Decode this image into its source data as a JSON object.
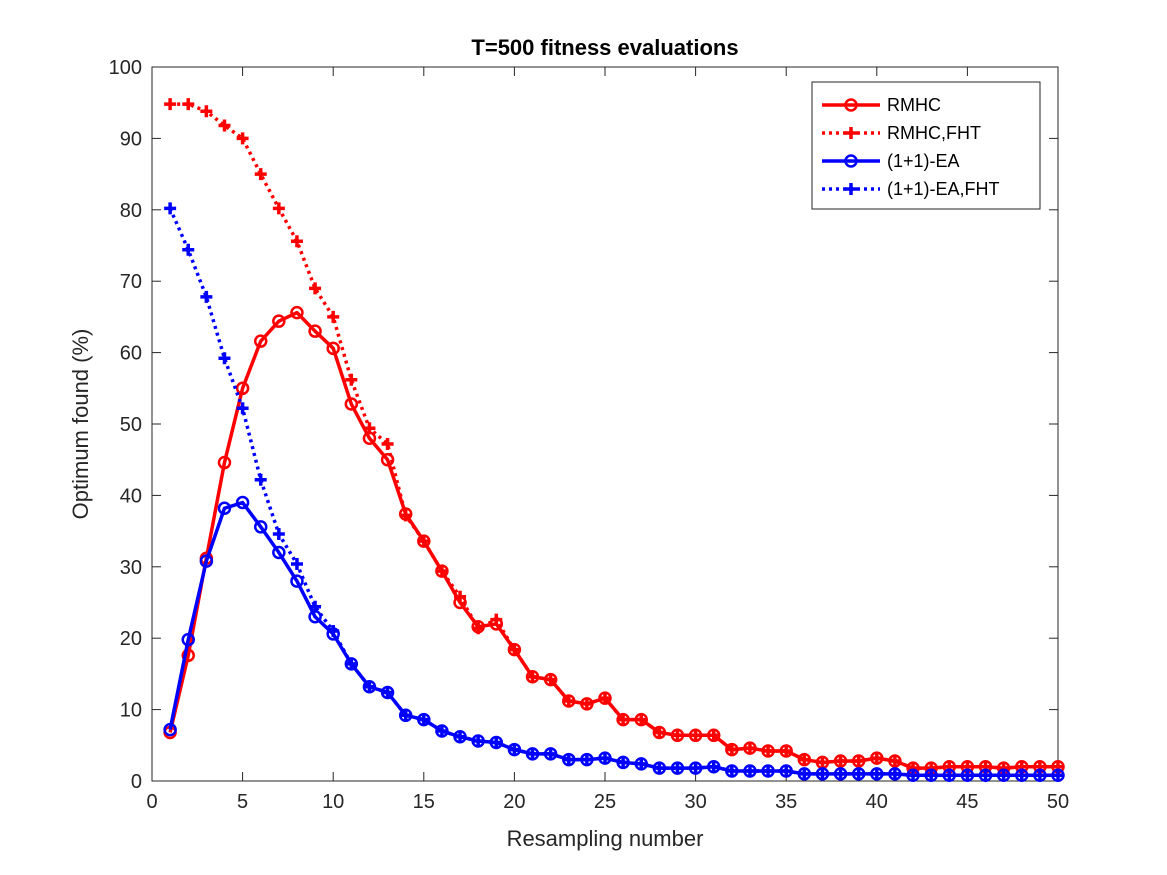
{
  "chart_data": {
    "type": "line",
    "title": "T=500 fitness evaluations",
    "xlabel": "Resampling number",
    "ylabel": "Optimum found (%)",
    "xlim": [
      0,
      50
    ],
    "ylim": [
      0,
      100
    ],
    "xticks": [
      0,
      5,
      10,
      15,
      20,
      25,
      30,
      35,
      40,
      45,
      50
    ],
    "yticks": [
      0,
      10,
      20,
      30,
      40,
      50,
      60,
      70,
      80,
      90,
      100
    ],
    "grid": false,
    "legend_position": "top-right",
    "x": [
      1,
      2,
      3,
      4,
      5,
      6,
      7,
      8,
      9,
      10,
      11,
      12,
      13,
      14,
      15,
      16,
      17,
      18,
      19,
      20,
      21,
      22,
      23,
      24,
      25,
      26,
      27,
      28,
      29,
      30,
      31,
      32,
      33,
      34,
      35,
      36,
      37,
      38,
      39,
      40,
      41,
      42,
      43,
      44,
      45,
      46,
      47,
      48,
      49,
      50
    ],
    "series": [
      {
        "name": "RMHC",
        "color": "#ff0000",
        "line_style": "solid",
        "marker": "circle",
        "values": [
          6.8,
          17.6,
          31.2,
          44.6,
          55.0,
          61.6,
          64.4,
          65.6,
          63.0,
          60.6,
          52.8,
          48.0,
          45.0,
          37.4,
          33.6,
          29.4,
          25.0,
          21.6,
          22.0,
          18.4,
          14.6,
          14.2,
          11.2,
          10.8,
          11.6,
          8.6,
          8.6,
          6.8,
          6.4,
          6.4,
          6.4,
          4.4,
          4.6,
          4.2,
          4.2,
          3.0,
          2.6,
          2.8,
          2.8,
          3.2,
          2.8,
          1.8,
          1.8,
          2.0,
          2.0,
          2.0,
          1.8,
          2.0,
          2.0,
          2.0
        ]
      },
      {
        "name": "RMHC,FHT",
        "color": "#ff0000",
        "line_style": "dotted",
        "marker": "plus",
        "values": [
          94.8,
          94.8,
          93.8,
          91.8,
          90.0,
          85.0,
          80.2,
          75.6,
          69.0,
          65.0,
          56.2,
          49.4,
          47.2,
          37.2,
          33.6,
          29.4,
          25.8,
          21.4,
          22.6,
          18.4,
          14.6,
          14.2,
          11.2,
          10.8,
          11.6,
          8.6,
          8.6,
          6.8,
          6.4,
          6.4,
          6.4,
          4.4,
          4.6,
          4.2,
          4.2,
          3.0,
          2.6,
          2.8,
          2.8,
          3.2,
          2.8,
          1.8,
          1.8,
          2.0,
          2.0,
          2.0,
          1.8,
          2.0,
          2.0,
          2.0
        ]
      },
      {
        "name": "(1+1)-EA",
        "color": "#0000ff",
        "line_style": "solid",
        "marker": "circle",
        "values": [
          7.2,
          19.8,
          30.8,
          38.2,
          39.0,
          35.6,
          32.0,
          28.0,
          23.0,
          20.6,
          16.4,
          13.2,
          12.4,
          9.2,
          8.6,
          7.0,
          6.2,
          5.6,
          5.4,
          4.4,
          3.8,
          3.8,
          3.0,
          3.0,
          3.2,
          2.6,
          2.4,
          1.8,
          1.8,
          1.8,
          2.0,
          1.4,
          1.4,
          1.4,
          1.4,
          1.0,
          1.0,
          1.0,
          1.0,
          1.0,
          1.0,
          0.8,
          0.8,
          0.8,
          0.8,
          0.8,
          0.8,
          0.8,
          0.8,
          0.8
        ]
      },
      {
        "name": "(1+1)-EA,FHT",
        "color": "#0000ff",
        "line_style": "dotted",
        "marker": "plus",
        "values": [
          80.2,
          74.4,
          67.8,
          59.2,
          52.2,
          42.2,
          34.6,
          30.4,
          24.4,
          21.0,
          16.4,
          13.2,
          12.4,
          9.2,
          8.6,
          7.0,
          6.2,
          5.6,
          5.4,
          4.4,
          3.8,
          3.8,
          3.0,
          3.0,
          3.2,
          2.6,
          2.4,
          1.8,
          1.8,
          1.8,
          2.0,
          1.4,
          1.4,
          1.4,
          1.4,
          1.0,
          1.0,
          1.0,
          1.0,
          1.0,
          1.0,
          0.8,
          0.8,
          0.8,
          0.8,
          0.8,
          0.8,
          0.8,
          0.8,
          0.8
        ]
      }
    ]
  }
}
